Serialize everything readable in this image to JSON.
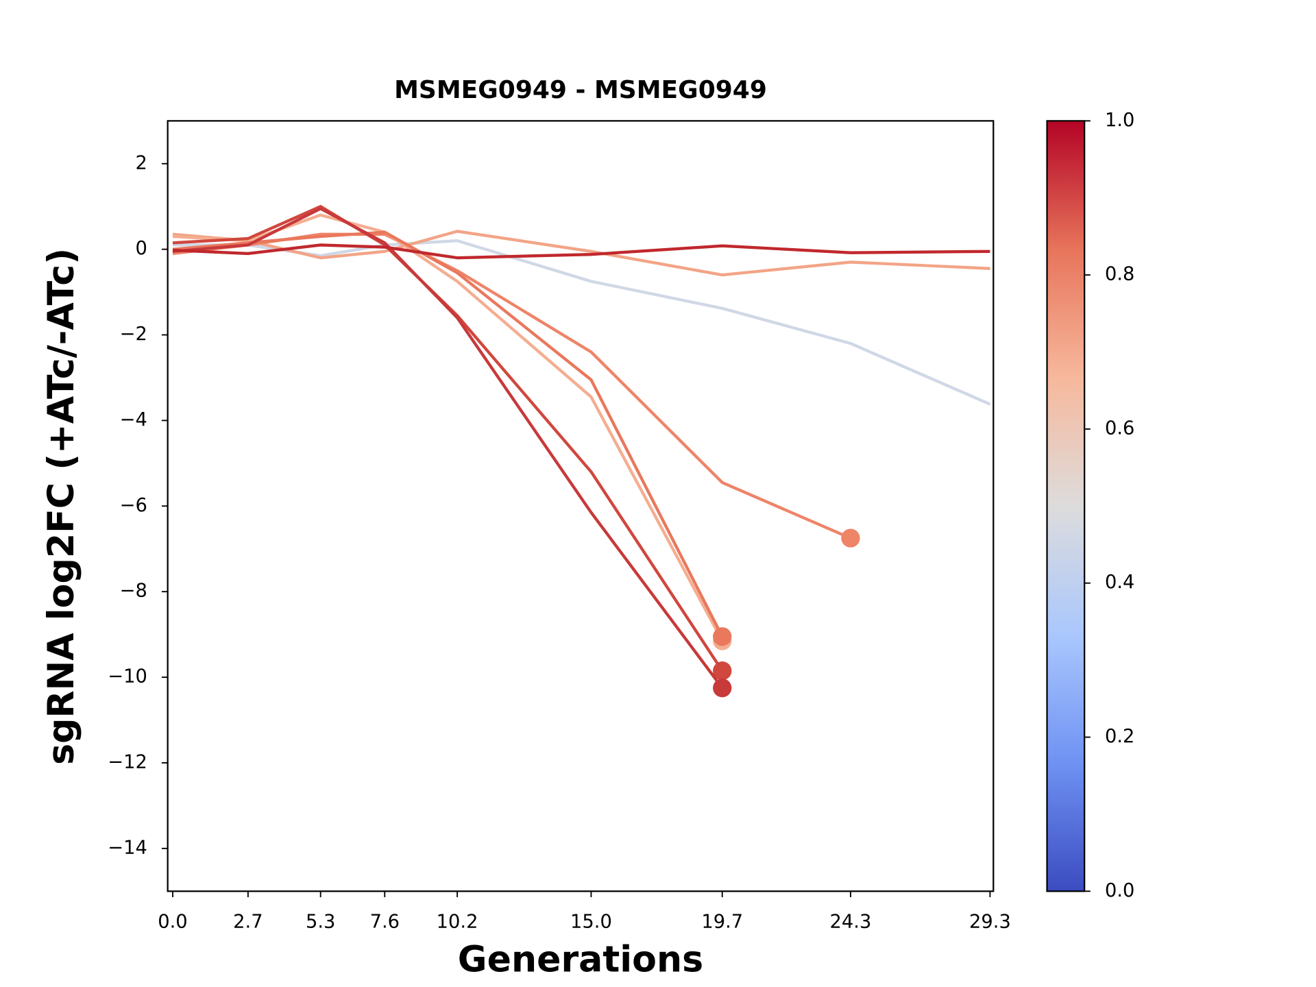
{
  "chart_data": {
    "type": "line",
    "title": "MSMEG0949 - MSMEG0949",
    "xlabel": "Generations",
    "ylabel": "sgRNA log2FC (+ATc/-ATc)",
    "x": [
      0,
      2.7,
      5.3,
      7.6,
      10.2,
      15,
      19.7,
      24.3,
      29.3
    ],
    "xlim": [
      -0.18,
      29.42
    ],
    "xticks": [
      {
        "value": 0,
        "label": "0.0"
      },
      2.7,
      5.3,
      7.6,
      10.2,
      {
        "value": 15,
        "label": "15.0"
      },
      19.7,
      24.3,
      29.3
    ],
    "ylim": [
      -15,
      3
    ],
    "yticks": [
      2,
      0,
      {
        "value": -2,
        "label": "−2"
      },
      {
        "value": -4,
        "label": "−4"
      },
      {
        "value": -6,
        "label": "−6"
      },
      {
        "value": -8,
        "label": "−8"
      },
      {
        "value": -10,
        "label": "−10"
      },
      {
        "value": -12,
        "label": "−12"
      },
      {
        "value": -14,
        "label": "−14"
      }
    ],
    "end_marker": true,
    "series": [
      {
        "color": "#d0d7e6",
        "values": [
          0.1,
          0.1,
          -0.15,
          0.1,
          0.2,
          -0.75,
          -1.38,
          -2.2,
          -3.62
        ]
      },
      {
        "color": "#f2a486",
        "values": [
          0.35,
          0.2,
          -0.2,
          -0.05,
          0.42,
          -0.05,
          -0.6,
          -0.3,
          -0.45
        ]
      },
      {
        "color": "#ee8468",
        "values": [
          -0.1,
          0.1,
          0.35,
          0.35,
          -0.5,
          -2.4,
          -5.45,
          -6.75,
          null
        ]
      },
      {
        "color": "#f5ad90",
        "values": [
          0.3,
          0.2,
          0.8,
          0.4,
          -0.75,
          -3.45,
          -9.15,
          null,
          null
        ]
      },
      {
        "color": "#e9785d",
        "values": [
          0.0,
          0.15,
          0.3,
          0.4,
          -0.55,
          -3.05,
          -9.05,
          null,
          null
        ]
      },
      {
        "color": "#d0473d",
        "values": [
          0.15,
          0.25,
          1.0,
          0.1,
          -1.55,
          -5.2,
          -9.85,
          null,
          null
        ]
      },
      {
        "color": "#c8393a",
        "values": [
          -0.05,
          0.1,
          0.95,
          0.15,
          -1.6,
          -6.15,
          -10.25,
          null,
          null
        ]
      },
      {
        "color": "#c0282d",
        "values": [
          -0.02,
          -0.1,
          0.1,
          0.05,
          -0.2,
          -0.12,
          0.08,
          -0.08,
          -0.05
        ]
      }
    ],
    "colorbar": {
      "lim": [
        0,
        1
      ],
      "ticks": [
        {
          "value": 0,
          "label": "0.0"
        },
        0.2,
        0.4,
        0.6,
        0.8,
        {
          "value": 1,
          "label": "1.0"
        }
      ],
      "colors": [
        "#3b4cc0",
        "#6f92f3",
        "#aac7fd",
        "#dddcdc",
        "#f7b89c",
        "#e7745b",
        "#b40426"
      ]
    }
  }
}
